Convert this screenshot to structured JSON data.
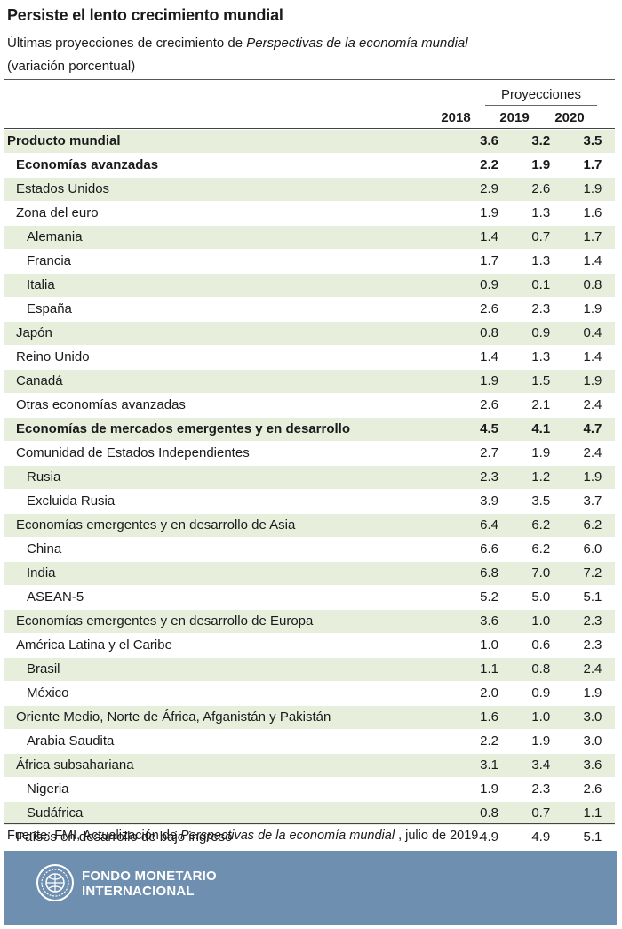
{
  "title": "Persiste el lento crecimiento mundial",
  "subtitle_prefix": "Últimas proyecciones de crecimiento de ",
  "subtitle_italic": "Perspectivas de la economía mundial",
  "subtitle_unit": "(variación porcentual)",
  "projections_label": "Proyecciones",
  "years": [
    "2018",
    "2019",
    "2020"
  ],
  "rows": [
    {
      "label": "Producto mundial",
      "indent": 0,
      "bold": true,
      "values": [
        "3.6",
        "3.2",
        "3.5"
      ]
    },
    {
      "label": "Economías avanzadas",
      "indent": 1,
      "bold": true,
      "values": [
        "2.2",
        "1.9",
        "1.7"
      ]
    },
    {
      "label": "Estados Unidos",
      "indent": 1,
      "bold": false,
      "values": [
        "2.9",
        "2.6",
        "1.9"
      ]
    },
    {
      "label": "Zona del euro",
      "indent": 1,
      "bold": false,
      "values": [
        "1.9",
        "1.3",
        "1.6"
      ]
    },
    {
      "label": "Alemania",
      "indent": 2,
      "bold": false,
      "values": [
        "1.4",
        "0.7",
        "1.7"
      ]
    },
    {
      "label": "Francia",
      "indent": 2,
      "bold": false,
      "values": [
        "1.7",
        "1.3",
        "1.4"
      ]
    },
    {
      "label": "Italia",
      "indent": 2,
      "bold": false,
      "values": [
        "0.9",
        "0.1",
        "0.8"
      ]
    },
    {
      "label": "España",
      "indent": 2,
      "bold": false,
      "values": [
        "2.6",
        "2.3",
        "1.9"
      ]
    },
    {
      "label": "Japón",
      "indent": 1,
      "bold": false,
      "values": [
        "0.8",
        "0.9",
        "0.4"
      ]
    },
    {
      "label": "Reino Unido",
      "indent": 1,
      "bold": false,
      "values": [
        "1.4",
        "1.3",
        "1.4"
      ]
    },
    {
      "label": "Canadá",
      "indent": 1,
      "bold": false,
      "values": [
        "1.9",
        "1.5",
        "1.9"
      ]
    },
    {
      "label": "Otras economías avanzadas",
      "indent": 1,
      "bold": false,
      "values": [
        "2.6",
        "2.1",
        "2.4"
      ]
    },
    {
      "label": "Economías de mercados emergentes y en desarrollo",
      "indent": 1,
      "bold": true,
      "values": [
        "4.5",
        "4.1",
        "4.7"
      ]
    },
    {
      "label": "Comunidad de Estados Independientes",
      "indent": 1,
      "bold": false,
      "values": [
        "2.7",
        "1.9",
        "2.4"
      ]
    },
    {
      "label": "Rusia",
      "indent": 2,
      "bold": false,
      "values": [
        "2.3",
        "1.2",
        "1.9"
      ]
    },
    {
      "label": "Excluida Rusia",
      "indent": 2,
      "bold": false,
      "values": [
        "3.9",
        "3.5",
        "3.7"
      ]
    },
    {
      "label": "Economías emergentes y en desarrollo de Asia",
      "indent": 1,
      "bold": false,
      "values": [
        "6.4",
        "6.2",
        "6.2"
      ]
    },
    {
      "label": "China",
      "indent": 2,
      "bold": false,
      "values": [
        "6.6",
        "6.2",
        "6.0"
      ]
    },
    {
      "label": "India",
      "indent": 2,
      "bold": false,
      "values": [
        "6.8",
        "7.0",
        "7.2"
      ]
    },
    {
      "label": "ASEAN-5",
      "indent": 2,
      "bold": false,
      "values": [
        "5.2",
        "5.0",
        "5.1"
      ]
    },
    {
      "label": "Economías emergentes y en desarrollo de Europa",
      "indent": 1,
      "bold": false,
      "values": [
        "3.6",
        "1.0",
        "2.3"
      ]
    },
    {
      "label": "América Latina y el Caribe",
      "indent": 1,
      "bold": false,
      "values": [
        "1.0",
        "0.6",
        "2.3"
      ]
    },
    {
      "label": "Brasil",
      "indent": 2,
      "bold": false,
      "values": [
        "1.1",
        "0.8",
        "2.4"
      ]
    },
    {
      "label": "México",
      "indent": 2,
      "bold": false,
      "values": [
        "2.0",
        "0.9",
        "1.9"
      ]
    },
    {
      "label": "Oriente Medio, Norte de África, Afganistán y Pakistán",
      "indent": 1,
      "bold": false,
      "values": [
        "1.6",
        "1.0",
        "3.0"
      ]
    },
    {
      "label": "Arabia Saudita",
      "indent": 2,
      "bold": false,
      "values": [
        "2.2",
        "1.9",
        "3.0"
      ]
    },
    {
      "label": "África subsahariana",
      "indent": 1,
      "bold": false,
      "values": [
        "3.1",
        "3.4",
        "3.6"
      ]
    },
    {
      "label": "Nigeria",
      "indent": 2,
      "bold": false,
      "values": [
        "1.9",
        "2.3",
        "2.6"
      ]
    },
    {
      "label": "Sudáfrica",
      "indent": 2,
      "bold": false,
      "values": [
        "0.8",
        "0.7",
        "1.1"
      ]
    },
    {
      "label": "Países en desarrollo de bajo ingreso",
      "indent": 1,
      "bold": false,
      "values": [
        "4.9",
        "4.9",
        "5.1"
      ]
    }
  ],
  "source_prefix": "Fuente: FMI, Actualización de ",
  "source_italic": "Perspectivas de la economía mundial",
  "source_suffix": " , julio de 2019.",
  "footer": {
    "logo_icon": "imf-seal-icon",
    "org_line1": "FONDO MONETARIO",
    "org_line2": "INTERNACIONAL",
    "band_color": "#6e8fb0",
    "shade_color": "#e8eedc"
  }
}
